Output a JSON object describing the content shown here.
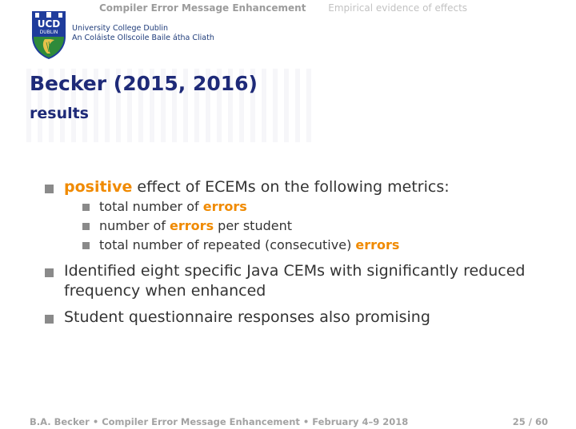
{
  "nav": {
    "section": "Compiler Error Message Enhancement",
    "subsection": "Empirical evidence of effects"
  },
  "institution": {
    "logo_text_top": "UCD",
    "logo_text_bottom": "DUBLIN",
    "line1": "University College Dublin",
    "line2": "An Coláiste Ollscoile Baile átha Cliath",
    "colors": {
      "shield_blue": "#1f3c9c",
      "shield_green": "#2f8a3a",
      "harp_gold": "#e6c14a"
    }
  },
  "slide": {
    "title": "Becker (2015, 2016)",
    "subtitle": "results"
  },
  "bullets": {
    "b1": {
      "highlight": "positive",
      "rest": " effect of ECEMs on the following metrics:"
    },
    "sub1": {
      "text": "total number of ",
      "highlight": "errors"
    },
    "sub2": {
      "pre": "number of ",
      "highlight": "errors",
      "post": " per student"
    },
    "sub3": {
      "text": "total number of repeated (consecutive) ",
      "highlight": "errors"
    },
    "b2": {
      "line1": "Identified eight specific Java CEMs with significantly reduced",
      "line2": "frequency when enhanced"
    },
    "b3": {
      "text": "Student questionnaire responses also promising"
    }
  },
  "footer": {
    "author": "B.A. Becker",
    "sep1": "•",
    "talk": "Compiler Error Message Enhancement",
    "sep2": "•",
    "date": "February 4–9 2018",
    "page": "25 / 60"
  },
  "colors": {
    "title": "#1e2a78",
    "highlight": "#f08a00",
    "bullet": "#8a8a8a",
    "text": "#333333"
  }
}
